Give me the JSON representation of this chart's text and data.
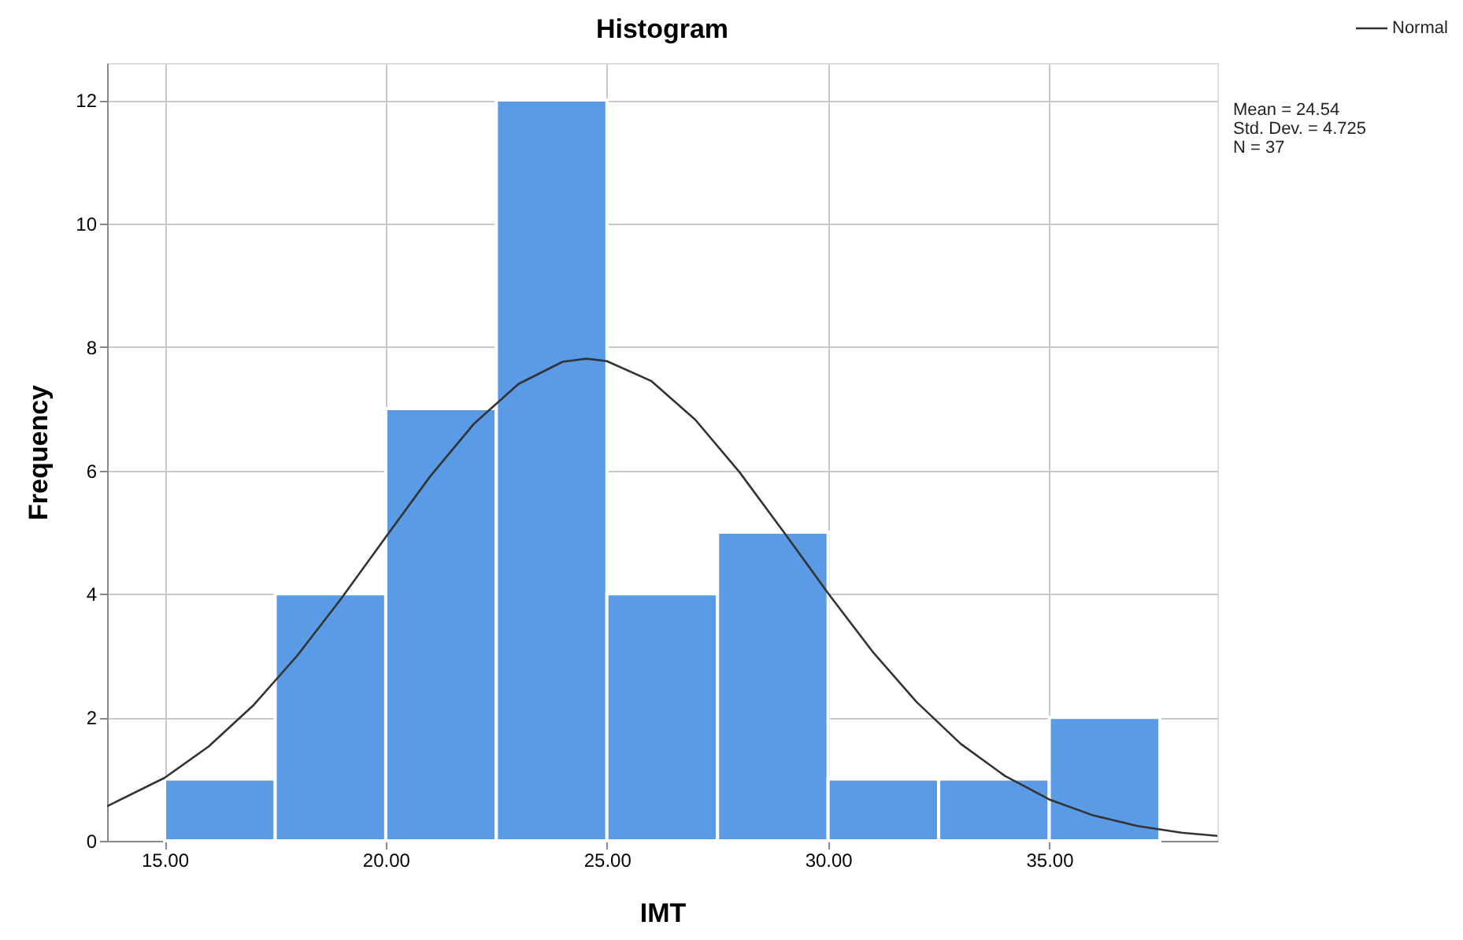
{
  "chart_data": {
    "type": "histogram",
    "title": "Histogram",
    "xlabel": "IMT",
    "ylabel": "Frequency",
    "bins": [
      15,
      17.5,
      20,
      22.5,
      25,
      27.5,
      30,
      32.5,
      35,
      37.5
    ],
    "values": [
      1,
      4,
      7,
      12,
      4,
      5,
      1,
      1,
      2
    ],
    "color": "#5b9be6",
    "series": [
      {
        "name": "Normal",
        "type": "line",
        "color": "#333333",
        "x": [
          13.7,
          15,
          16,
          17,
          18,
          19,
          20,
          21,
          22,
          23,
          24,
          24.54,
          25,
          26,
          27,
          28,
          29,
          30,
          31,
          32,
          33,
          34,
          35,
          36,
          37,
          38,
          38.8
        ],
        "values": [
          0.56,
          1.02,
          1.53,
          2.19,
          3.0,
          3.93,
          4.92,
          5.9,
          6.76,
          7.4,
          7.76,
          7.81,
          7.77,
          7.45,
          6.82,
          5.97,
          5.0,
          4.01,
          3.07,
          2.25,
          1.57,
          1.05,
          0.67,
          0.41,
          0.24,
          0.13,
          0.08
        ]
      }
    ],
    "xlim": [
      13.7,
      38.8
    ],
    "xticks": [
      {
        "value": 15,
        "label": "15.00"
      },
      {
        "value": 20,
        "label": "20.00"
      },
      {
        "value": 25,
        "label": "25.00"
      },
      {
        "value": 30,
        "label": "30.00"
      },
      {
        "value": 35,
        "label": "35.00"
      }
    ],
    "ylim": [
      0,
      12.6
    ],
    "yticks": [
      0,
      2,
      4,
      6,
      8,
      10,
      12
    ],
    "grid": true,
    "legend": "top right",
    "annotations": [
      "Mean = 24.54",
      "Std. Dev. = 4.725",
      "N = 37"
    ]
  }
}
